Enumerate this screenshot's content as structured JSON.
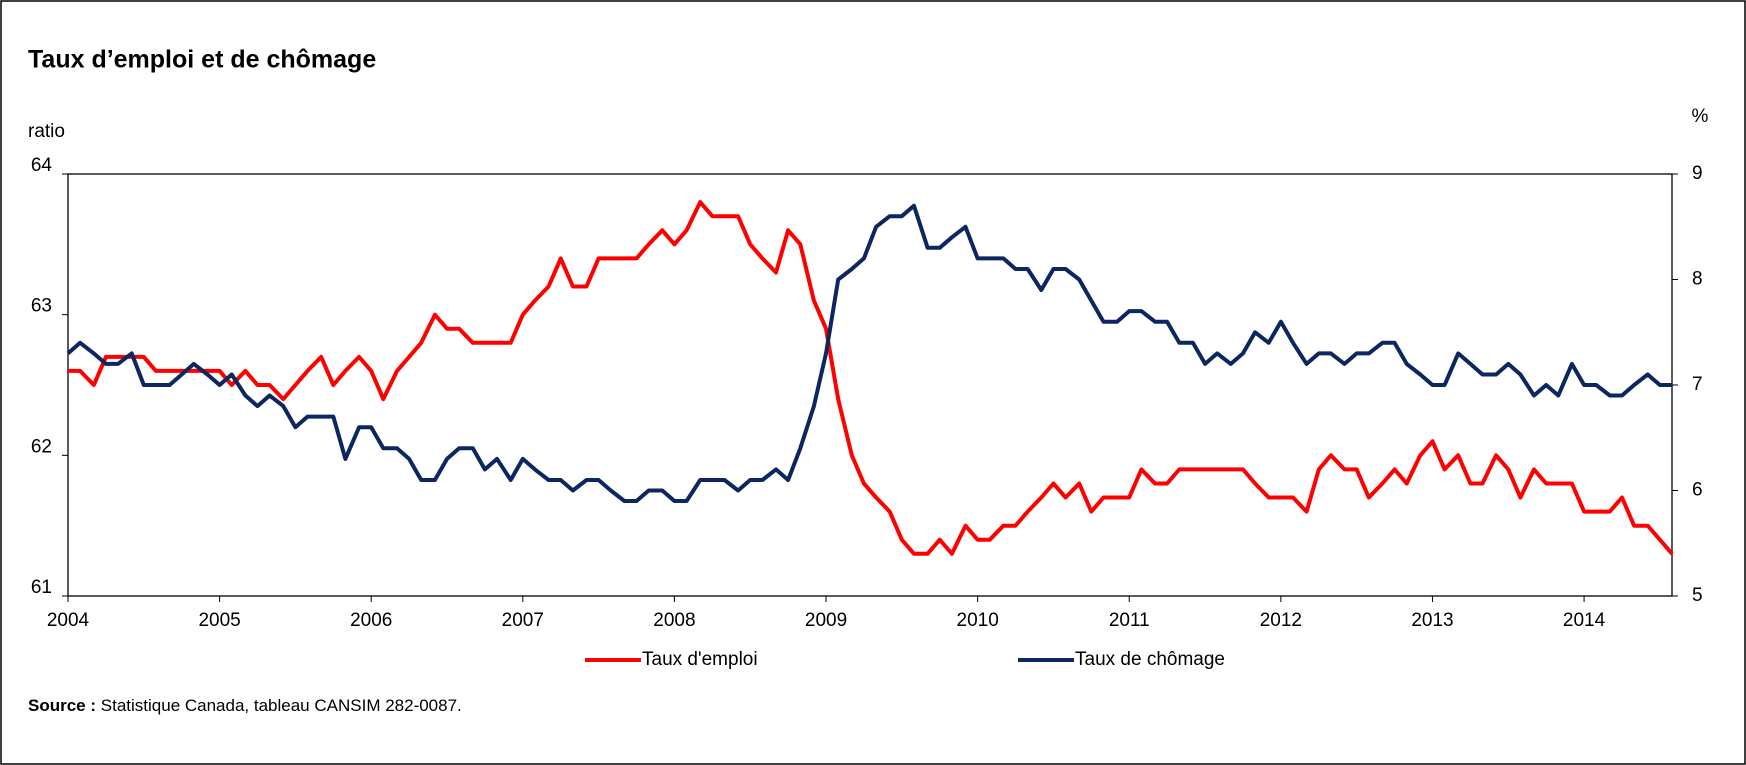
{
  "chart_data": {
    "type": "line",
    "title": "Taux d’emploi et de chômage",
    "y_label": "ratio",
    "y2_label": "%",
    "source": {
      "label": "Source :",
      "text": "Statistique Canada, tableau CANSIM 282-0087."
    },
    "x": [
      2004.0,
      2004.08,
      2004.17,
      2004.25,
      2004.33,
      2004.42,
      2004.5,
      2004.58,
      2004.67,
      2004.75,
      2004.83,
      2004.92,
      2005.0,
      2005.08,
      2005.17,
      2005.25,
      2005.33,
      2005.42,
      2005.5,
      2005.58,
      2005.67,
      2005.75,
      2005.83,
      2005.92,
      2006.0,
      2006.08,
      2006.17,
      2006.25,
      2006.33,
      2006.42,
      2006.5,
      2006.58,
      2006.67,
      2006.75,
      2006.83,
      2006.92,
      2007.0,
      2007.08,
      2007.17,
      2007.25,
      2007.33,
      2007.42,
      2007.5,
      2007.58,
      2007.67,
      2007.75,
      2007.83,
      2007.92,
      2008.0,
      2008.08,
      2008.17,
      2008.25,
      2008.33,
      2008.42,
      2008.5,
      2008.58,
      2008.67,
      2008.75,
      2008.83,
      2008.92,
      2009.0,
      2009.08,
      2009.17,
      2009.25,
      2009.33,
      2009.42,
      2009.5,
      2009.58,
      2009.67,
      2009.75,
      2009.83,
      2009.92,
      2010.0,
      2010.08,
      2010.17,
      2010.25,
      2010.33,
      2010.42,
      2010.5,
      2010.58,
      2010.67,
      2010.75,
      2010.83,
      2010.92,
      2011.0,
      2011.08,
      2011.17,
      2011.25,
      2011.33,
      2011.42,
      2011.5,
      2011.58,
      2011.67,
      2011.75,
      2011.83,
      2011.92,
      2012.0,
      2012.08,
      2012.17,
      2012.25,
      2012.33,
      2012.42,
      2012.5,
      2012.58,
      2012.67,
      2012.75,
      2012.83,
      2012.92,
      2013.0,
      2013.08,
      2013.17,
      2013.25,
      2013.33,
      2013.42,
      2013.5,
      2013.58,
      2013.67,
      2013.75,
      2013.83,
      2013.92,
      2014.0,
      2014.08,
      2014.17,
      2014.25,
      2014.33,
      2014.42,
      2014.5,
      2014.58
    ],
    "xlim": [
      2004,
      2014.58
    ],
    "xticks": [
      2004,
      2005,
      2006,
      2007,
      2008,
      2009,
      2010,
      2011,
      2012,
      2013,
      2014
    ],
    "ylim": [
      61,
      64
    ],
    "yticks": [
      61,
      62,
      63,
      64
    ],
    "y2lim": [
      5,
      9
    ],
    "y2ticks": [
      5,
      6,
      7,
      8,
      9
    ],
    "series": [
      {
        "name": "Taux d'emploi",
        "color": "#ff0000",
        "values": [
          62.6,
          62.6,
          62.5,
          62.7,
          62.7,
          62.7,
          62.7,
          62.6,
          62.6,
          62.6,
          62.6,
          62.6,
          62.6,
          62.5,
          62.6,
          62.5,
          62.5,
          62.4,
          62.5,
          62.6,
          62.7,
          62.5,
          62.6,
          62.7,
          62.6,
          62.4,
          62.6,
          62.7,
          62.8,
          63.0,
          62.9,
          62.9,
          62.8,
          62.8,
          62.8,
          62.8,
          63.0,
          63.1,
          63.2,
          63.4,
          63.2,
          63.2,
          63.4,
          63.4,
          63.4,
          63.4,
          63.5,
          63.6,
          63.5,
          63.6,
          63.8,
          63.7,
          63.7,
          63.7,
          63.5,
          63.4,
          63.3,
          63.6,
          63.5,
          63.1,
          62.9,
          62.4,
          62.0,
          61.8,
          61.7,
          61.6,
          61.4,
          61.3,
          61.3,
          61.4,
          61.3,
          61.5,
          61.4,
          61.4,
          61.5,
          61.5,
          61.6,
          61.7,
          61.8,
          61.7,
          61.8,
          61.6,
          61.7,
          61.7,
          61.7,
          61.9,
          61.8,
          61.8,
          61.9,
          61.9,
          61.9,
          61.9,
          61.9,
          61.9,
          61.8,
          61.7,
          61.7,
          61.7,
          61.6,
          61.9,
          62.0,
          61.9,
          61.9,
          61.7,
          61.8,
          61.9,
          61.8,
          62.0,
          62.1,
          61.9,
          62.0,
          61.8,
          61.8,
          62.0,
          61.9,
          61.7,
          61.9,
          61.8,
          61.8,
          61.8,
          61.6,
          61.6,
          61.6,
          61.7,
          61.5,
          61.5,
          61.4,
          61.3
        ]
      },
      {
        "name": "Taux de chômage",
        "color": "#0c2660",
        "axis": "y2",
        "values": [
          7.3,
          7.4,
          7.3,
          7.2,
          7.2,
          7.3,
          7.0,
          7.0,
          7.0,
          7.1,
          7.2,
          7.1,
          7.0,
          7.1,
          6.9,
          6.8,
          6.9,
          6.8,
          6.6,
          6.7,
          6.7,
          6.7,
          6.3,
          6.6,
          6.6,
          6.4,
          6.4,
          6.3,
          6.1,
          6.1,
          6.3,
          6.4,
          6.4,
          6.2,
          6.3,
          6.1,
          6.3,
          6.2,
          6.1,
          6.1,
          6.0,
          6.1,
          6.1,
          6.0,
          5.9,
          5.9,
          6.0,
          6.0,
          5.9,
          5.9,
          6.1,
          6.1,
          6.1,
          6.0,
          6.1,
          6.1,
          6.2,
          6.1,
          6.4,
          6.8,
          7.3,
          8.0,
          8.1,
          8.2,
          8.5,
          8.6,
          8.6,
          8.7,
          8.3,
          8.3,
          8.4,
          8.5,
          8.2,
          8.2,
          8.2,
          8.1,
          8.1,
          7.9,
          8.1,
          8.1,
          8.0,
          7.8,
          7.6,
          7.6,
          7.7,
          7.7,
          7.6,
          7.6,
          7.4,
          7.4,
          7.2,
          7.3,
          7.2,
          7.3,
          7.5,
          7.4,
          7.6,
          7.4,
          7.2,
          7.3,
          7.3,
          7.2,
          7.3,
          7.3,
          7.4,
          7.4,
          7.2,
          7.1,
          7.0,
          7.0,
          7.3,
          7.2,
          7.1,
          7.1,
          7.2,
          7.1,
          6.9,
          7.0,
          6.9,
          7.2,
          7.0,
          7.0,
          6.9,
          6.9,
          7.0,
          7.1,
          7.0,
          7.0
        ]
      }
    ]
  }
}
